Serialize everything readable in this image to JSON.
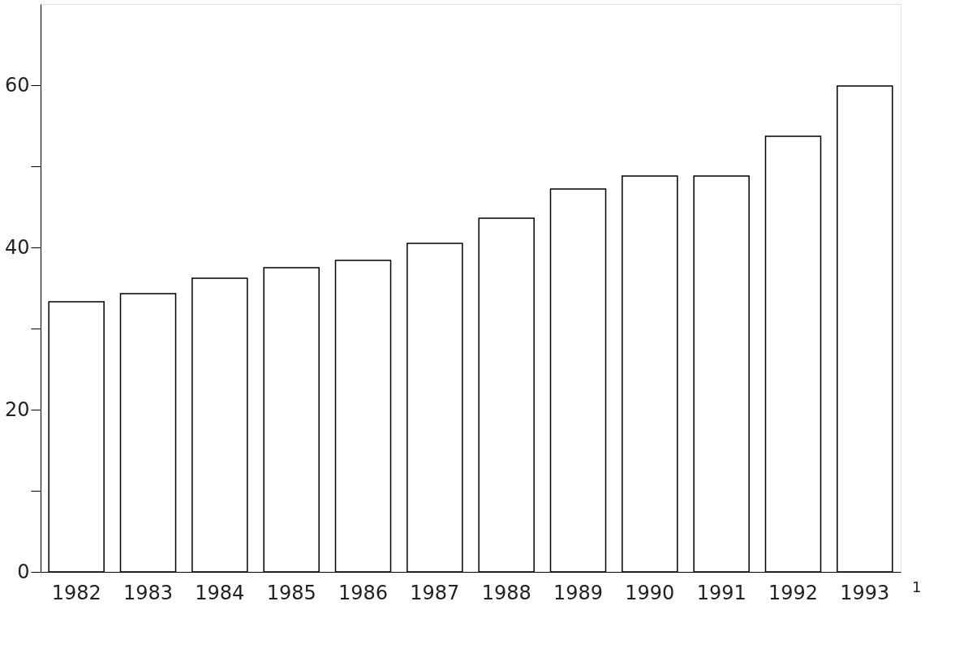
{
  "chart_data": {
    "type": "bar",
    "categories": [
      "1982",
      "1983",
      "1984",
      "1985",
      "1986",
      "1987",
      "1988",
      "1989",
      "1990",
      "1991",
      "1992",
      "1993"
    ],
    "values": [
      33.3,
      34.3,
      36.2,
      37.5,
      38.4,
      40.5,
      43.6,
      47.2,
      48.8,
      48.8,
      53.7,
      59.9
    ],
    "color": "#ffffff",
    "ylim": [
      0,
      70
    ],
    "yticks": [
      0,
      {
        "value": 10,
        "label": null
      },
      20,
      {
        "value": 30,
        "label": null
      },
      40,
      {
        "value": 50,
        "label": null
      },
      60
    ],
    "grid": false,
    "annotations": [
      "1"
    ]
  }
}
